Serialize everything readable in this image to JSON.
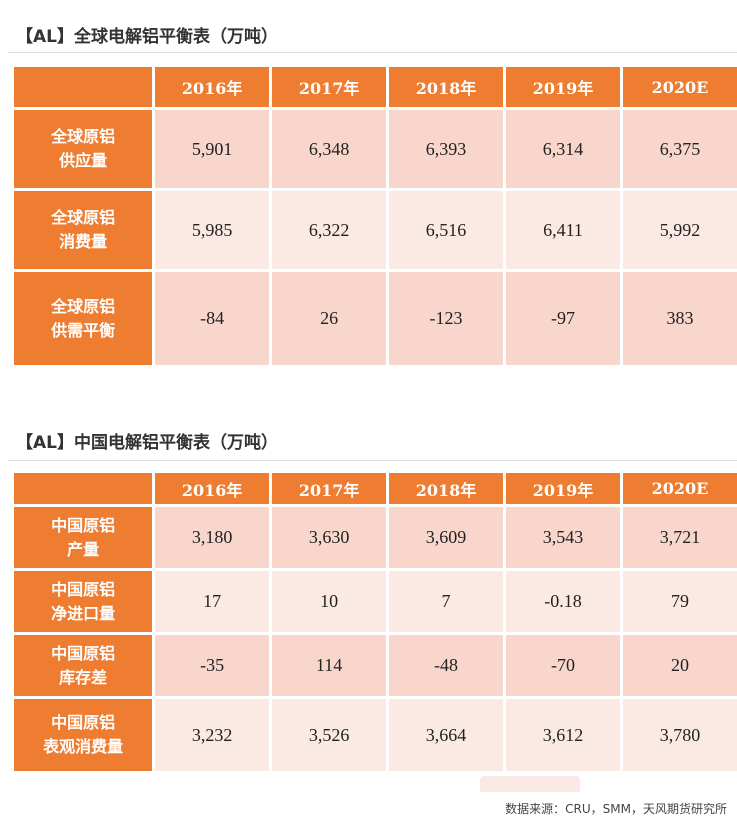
{
  "global_table": {
    "title": "【AL】全球电解铝平衡表（万吨）",
    "years": [
      "2016年",
      "2017年",
      "2018年",
      "2019年",
      "2020E"
    ],
    "rows": [
      {
        "label_line1": "全球原铝",
        "label_line2": "供应量",
        "values": [
          "5,901",
          "6,348",
          "6,393",
          "6,314",
          "6,375"
        ]
      },
      {
        "label_line1": "全球原铝",
        "label_line2": "消费量",
        "values": [
          "5,985",
          "6,322",
          "6,516",
          "6,411",
          "5,992"
        ]
      },
      {
        "label_line1": "全球原铝",
        "label_line2": "供需平衡",
        "values": [
          "-84",
          "26",
          "-123",
          "-97",
          "383"
        ]
      }
    ]
  },
  "china_table": {
    "title": "【AL】中国电解铝平衡表（万吨）",
    "years": [
      "2016年",
      "2017年",
      "2018年",
      "2019年",
      "2020E"
    ],
    "rows": [
      {
        "label_line1": "中国原铝",
        "label_line2": "产量",
        "values": [
          "3,180",
          "3,630",
          "3,609",
          "3,543",
          "3,721"
        ]
      },
      {
        "label_line1": "中国原铝",
        "label_line2": "净进口量",
        "values": [
          "17",
          "10",
          "7",
          "-0.18",
          "79"
        ]
      },
      {
        "label_line1": "中国原铝",
        "label_line2": "库存差",
        "values": [
          "-35",
          "114",
          "-48",
          "-70",
          "20"
        ]
      },
      {
        "label_line1": "中国原铝",
        "label_line2": "表观消费量",
        "values": [
          "3,232",
          "3,526",
          "3,664",
          "3,612",
          "3,780"
        ]
      }
    ]
  },
  "source_note": "数据来源：CRU，SMM，天风期货研究所",
  "colors": {
    "header_orange": "#ee7d31",
    "cell_dark": "#f8d6cc",
    "cell_light": "#fbe9e4"
  }
}
